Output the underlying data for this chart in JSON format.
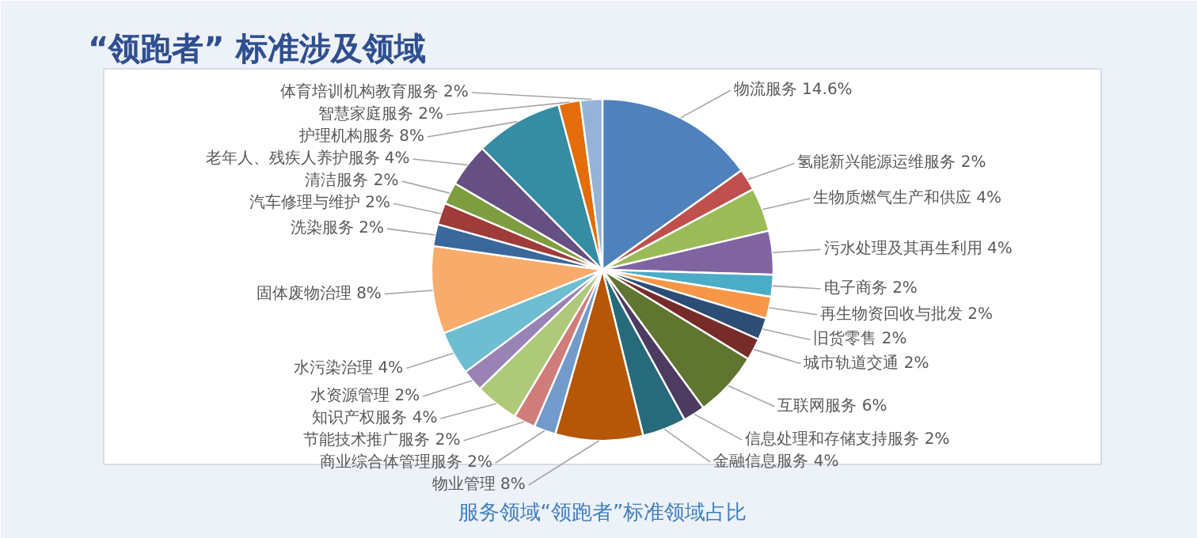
{
  "chart_data": {
    "type": "pie",
    "title": "“领跑者” 标准涉及领域",
    "subtitle": "服务领域“领跑者”标准领域占比",
    "categories": [
      "物流服务",
      "氢能新兴能源运维服务",
      "生物质燃气生产和供应",
      "污水处理及其再生利用",
      "电子商务",
      "再生物资回收与批发",
      "旧货零售",
      "城市轨道交通",
      "互联网服务",
      "信息处理和存储支持服务",
      "金融信息服务",
      "物业管理",
      "商业综合体管理服务",
      "节能技术推广服务",
      "知识产权服务",
      "水资源管理",
      "水污染治理",
      "固体废物治理",
      "洗染服务",
      "汽车修理与维护",
      "清洁服务",
      "老年人、残疾人养护服务",
      "护理机构服务",
      "智慧家庭服务",
      "体育培训机构教育服务"
    ],
    "values": [
      14.6,
      2,
      4,
      4,
      2,
      2,
      2,
      2,
      6,
      2,
      4,
      8,
      2,
      2,
      4,
      2,
      4,
      8,
      2,
      2,
      2,
      4,
      8,
      2,
      2
    ],
    "value_labels": [
      "14.6%",
      "2%",
      "4%",
      "4%",
      "2%",
      "2%",
      "2%",
      "2%",
      "6%",
      "2%",
      "4%",
      "8%",
      "2%",
      "2%",
      "4%",
      "2%",
      "4%",
      "8%",
      "2%",
      "2%",
      "2%",
      "4%",
      "8%",
      "2%",
      "2%"
    ],
    "colors": [
      "#4f81bd",
      "#c0504d",
      "#9bbb59",
      "#8064a2",
      "#4bacc6",
      "#f79646",
      "#2c4d75",
      "#772c2a",
      "#5f7530",
      "#4d3b62",
      "#276a7c",
      "#b65708",
      "#729aca",
      "#d07c7a",
      "#afc97a",
      "#9983b5",
      "#6fbdd1",
      "#f9ab6b",
      "#3a679c",
      "#9f3b38",
      "#7e9d40",
      "#664f83",
      "#358ca3",
      "#e46c0a",
      "#95b3d7"
    ]
  }
}
